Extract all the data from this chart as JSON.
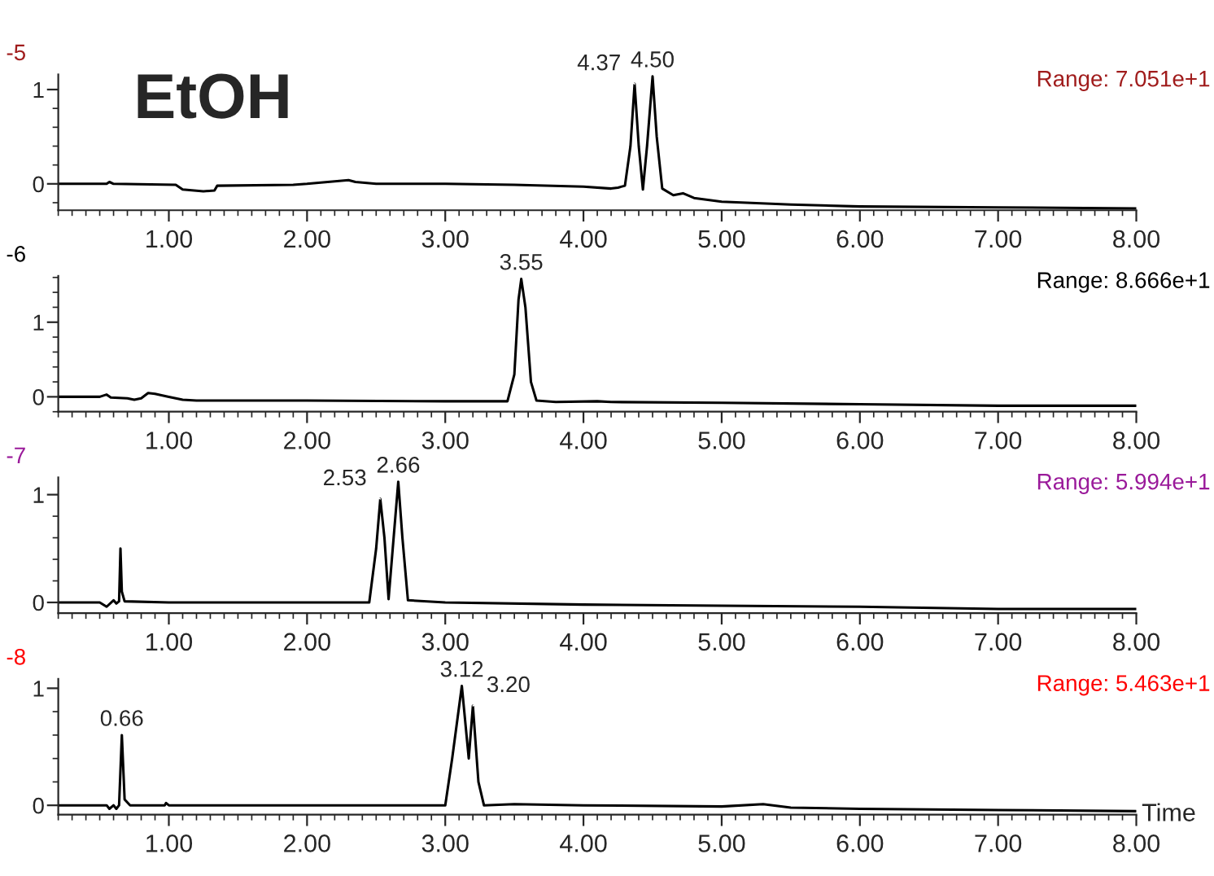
{
  "chart_data": [
    {
      "type": "line",
      "xlim": [
        0.2,
        8.0
      ],
      "ylim": [
        -0.28,
        1.16
      ],
      "xticks": [
        {
          "value": 1,
          "label": "1.00"
        },
        {
          "value": 2,
          "label": "2.00"
        },
        {
          "value": 3,
          "label": "3.00"
        },
        {
          "value": 4,
          "label": "4.00"
        },
        {
          "value": 5,
          "label": "5.00"
        },
        {
          "value": 6,
          "label": "6.00"
        },
        {
          "value": 7,
          "label": "7.00"
        },
        {
          "value": 8,
          "label": "8.00"
        }
      ],
      "yticks": [
        0,
        1
      ],
      "grid": false,
      "legend": false,
      "marker": "none",
      "line_style": "solid",
      "series": [
        {
          "color": "#000000",
          "x": [
            0.2,
            0.55,
            0.57,
            0.6,
            1.05,
            1.1,
            1.25,
            1.33,
            1.35,
            1.9,
            2.0,
            2.3,
            2.35,
            2.5,
            3.0,
            3.5,
            4.0,
            4.2,
            4.25,
            4.3,
            4.34,
            4.37,
            4.4,
            4.43,
            4.46,
            4.5,
            4.53,
            4.57,
            4.65,
            4.72,
            4.8,
            5.0,
            5.5,
            6.0,
            7.0,
            8.0
          ],
          "values": [
            0,
            0,
            0.02,
            0,
            -0.01,
            -0.06,
            -0.08,
            -0.07,
            -0.02,
            -0.01,
            0,
            0.04,
            0.02,
            0,
            0,
            -0.01,
            -0.03,
            -0.05,
            -0.04,
            -0.02,
            0.4,
            1.06,
            0.4,
            -0.06,
            0.4,
            1.14,
            0.5,
            -0.05,
            -0.12,
            -0.1,
            -0.15,
            -0.19,
            -0.22,
            -0.24,
            -0.25,
            -0.26
          ]
        }
      ],
      "annotations": [
        "-5",
        "Range: 7.051e+1",
        "EtOH",
        {
          "text": "4.37",
          "x": 4.37,
          "y": 1.06
        },
        {
          "text": "4.50",
          "x": 4.5,
          "y": 1.14
        }
      ]
    },
    {
      "type": "line",
      "xlim": [
        0.2,
        8.0
      ],
      "ylim": [
        -0.2,
        1.62
      ],
      "xticks": [
        {
          "value": 1,
          "label": "1.00"
        },
        {
          "value": 2,
          "label": "2.00"
        },
        {
          "value": 3,
          "label": "3.00"
        },
        {
          "value": 4,
          "label": "4.00"
        },
        {
          "value": 5,
          "label": "5.00"
        },
        {
          "value": 6,
          "label": "6.00"
        },
        {
          "value": 7,
          "label": "7.00"
        },
        {
          "value": 8,
          "label": "8.00"
        }
      ],
      "yticks": [
        0,
        1
      ],
      "grid": false,
      "legend": false,
      "marker": "none",
      "line_style": "solid",
      "series": [
        {
          "color": "#000000",
          "x": [
            0.2,
            0.5,
            0.55,
            0.58,
            0.7,
            0.75,
            0.8,
            0.85,
            0.9,
            1.0,
            1.1,
            1.2,
            2.0,
            3.0,
            3.45,
            3.5,
            3.53,
            3.55,
            3.58,
            3.62,
            3.66,
            3.8,
            4.1,
            4.2,
            5.0,
            6.0,
            7.0,
            8.0
          ],
          "values": [
            0,
            0,
            0.03,
            -0.01,
            -0.02,
            -0.04,
            -0.02,
            0.05,
            0.04,
            0,
            -0.04,
            -0.05,
            -0.05,
            -0.06,
            -0.06,
            0.3,
            1.3,
            1.58,
            1.2,
            0.2,
            -0.05,
            -0.07,
            -0.06,
            -0.07,
            -0.08,
            -0.1,
            -0.12,
            -0.12
          ]
        }
      ],
      "annotations": [
        "-6",
        "Range: 8.666e+1",
        {
          "text": "3.55",
          "x": 3.55,
          "y": 1.58
        }
      ]
    },
    {
      "type": "line",
      "xlim": [
        0.2,
        8.0
      ],
      "ylim": [
        -0.1,
        1.16
      ],
      "xticks": [
        {
          "value": 1,
          "label": "1.00"
        },
        {
          "value": 2,
          "label": "2.00"
        },
        {
          "value": 3,
          "label": "3.00"
        },
        {
          "value": 4,
          "label": "4.00"
        },
        {
          "value": 5,
          "label": "5.00"
        },
        {
          "value": 6,
          "label": "6.00"
        },
        {
          "value": 7,
          "label": "7.00"
        },
        {
          "value": 8,
          "label": "8.00"
        }
      ],
      "yticks": [
        0,
        1
      ],
      "grid": false,
      "legend": false,
      "marker": "none",
      "line_style": "solid",
      "series": [
        {
          "color": "#000000",
          "x": [
            0.2,
            0.5,
            0.55,
            0.6,
            0.62,
            0.64,
            0.65,
            0.66,
            0.68,
            1.0,
            2.0,
            2.45,
            2.5,
            2.53,
            2.56,
            2.59,
            2.62,
            2.66,
            2.69,
            2.73,
            3.0,
            4.0,
            5.0,
            6.0,
            7.0,
            8.0
          ],
          "values": [
            0,
            0,
            -0.04,
            0.02,
            -0.01,
            0.01,
            0.5,
            0.1,
            0.01,
            0,
            0,
            0,
            0.5,
            0.96,
            0.6,
            0.03,
            0.5,
            1.12,
            0.6,
            0.02,
            0,
            -0.02,
            -0.03,
            -0.04,
            -0.06,
            -0.06
          ]
        }
      ],
      "annotations": [
        "-7",
        "Range: 5.994e+1",
        {
          "text": "2.53",
          "x": 2.53,
          "y": 0.96
        },
        {
          "text": "2.66",
          "x": 2.66,
          "y": 1.12
        }
      ]
    },
    {
      "type": "line",
      "xlim": [
        0.2,
        8.0
      ],
      "ylim": [
        -0.08,
        1.08
      ],
      "xticks": [
        {
          "value": 1,
          "label": "1.00"
        },
        {
          "value": 2,
          "label": "2.00"
        },
        {
          "value": 3,
          "label": "3.00"
        },
        {
          "value": 4,
          "label": "4.00"
        },
        {
          "value": 5,
          "label": "5.00"
        },
        {
          "value": 6,
          "label": "6.00"
        },
        {
          "value": 7,
          "label": "7.00"
        },
        {
          "value": 8,
          "label": "8.00"
        }
      ],
      "yticks": [
        0,
        1
      ],
      "grid": false,
      "legend": false,
      "marker": "none",
      "line_style": "solid",
      "xlabel": "Time",
      "series": [
        {
          "color": "#000000",
          "x": [
            0.2,
            0.55,
            0.57,
            0.6,
            0.62,
            0.64,
            0.66,
            0.68,
            0.72,
            0.97,
            0.98,
            1.0,
            2.0,
            3.0,
            3.05,
            3.12,
            3.17,
            3.2,
            3.24,
            3.28,
            3.5,
            4.0,
            5.0,
            5.3,
            5.5,
            6.0,
            7.0,
            8.0
          ],
          "values": [
            0,
            0,
            -0.03,
            0,
            -0.03,
            0,
            0.6,
            0.05,
            0,
            0,
            0.02,
            0,
            0,
            0,
            0.4,
            1.02,
            0.4,
            0.85,
            0.2,
            0,
            0.01,
            0,
            -0.01,
            0.01,
            -0.02,
            -0.03,
            -0.04,
            -0.05
          ]
        }
      ],
      "annotations": [
        "-8",
        "Range: 5.463e+1",
        {
          "text": "0.66",
          "x": 0.66,
          "y": 0.6
        },
        {
          "text": "3.12",
          "x": 3.12,
          "y": 1.02
        },
        {
          "text": "3.20",
          "x": 3.2,
          "y": 0.85
        }
      ]
    }
  ]
}
